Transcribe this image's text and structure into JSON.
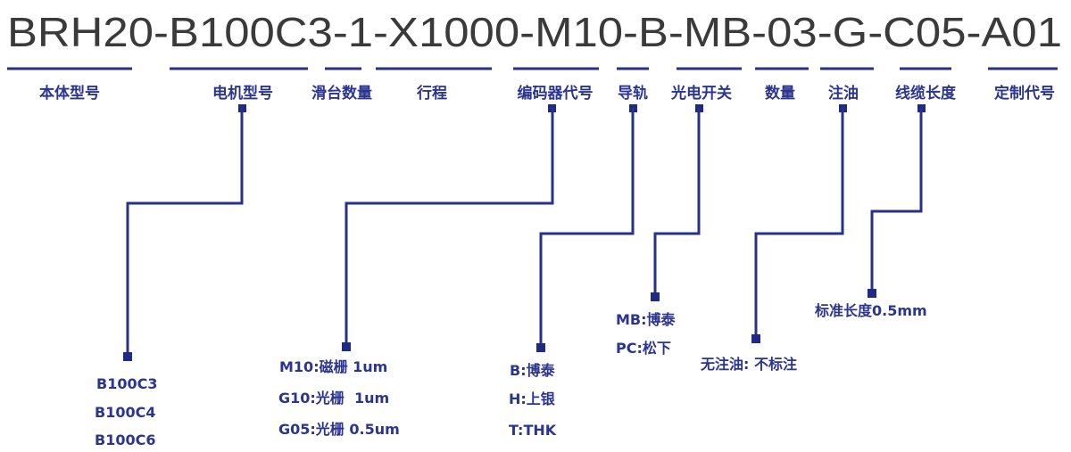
{
  "model_code": "BRH20-B100C3-1-X1000-M10-B-MB-03-G-C05-A01",
  "accent_color": "#27308a",
  "segments": [
    {
      "label": "本体型号"
    },
    {
      "label": "电机型号",
      "options": [
        "B100C3",
        "B100C4",
        "B100C6"
      ]
    },
    {
      "label": "滑台数量"
    },
    {
      "label": "行程"
    },
    {
      "label": "编码器代号",
      "options": [
        "M10:磁栅 1um",
        "G10:光栅  1um",
        "G05:光栅 0.5um"
      ]
    },
    {
      "label": "导轨",
      "options": [
        "B:博泰",
        "H:上银",
        "T:THK"
      ]
    },
    {
      "label": "光电开关",
      "options": [
        "MB:博泰",
        "PC:松下"
      ]
    },
    {
      "label": "数量"
    },
    {
      "label": "注油",
      "options": [
        "无注油: 不标注"
      ]
    },
    {
      "label": "线缆长度",
      "options": [
        "标准长度0.5mm"
      ]
    },
    {
      "label": "定制代号"
    }
  ]
}
